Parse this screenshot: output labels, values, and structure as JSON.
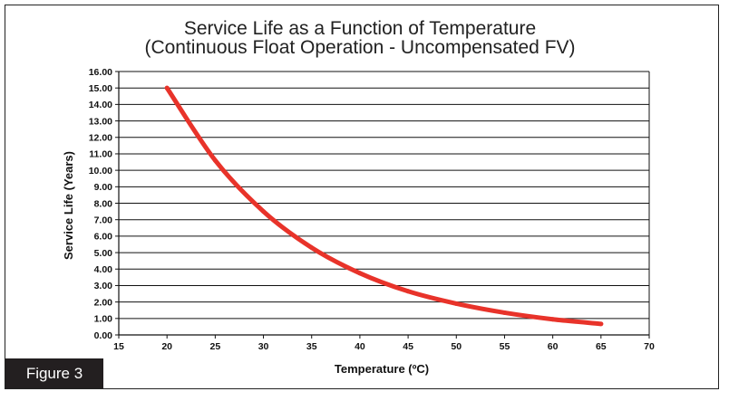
{
  "figure": {
    "label": "Figure 3"
  },
  "chart_data": {
    "type": "line",
    "title": "Service Life as a Function of Temperature",
    "subtitle": "(Continuous Float Operation - Uncompensated FV)",
    "xlabel": "Temperature (ºC)",
    "ylabel": "Service Life (Years)",
    "xlim": [
      15,
      70
    ],
    "ylim": [
      0,
      16
    ],
    "xticks": [
      15,
      20,
      25,
      30,
      35,
      40,
      45,
      50,
      55,
      60,
      65,
      70
    ],
    "yticks": [
      0,
      1,
      2,
      3,
      4,
      5,
      6,
      7,
      8,
      9,
      10,
      11,
      12,
      13,
      14,
      15,
      16
    ],
    "xtick_labels": [
      "15",
      "20",
      "25",
      "30",
      "35",
      "40",
      "45",
      "50",
      "55",
      "60",
      "65",
      "70"
    ],
    "ytick_labels": [
      "0.00",
      "1.00",
      "2.00",
      "3.00",
      "4.00",
      "5.00",
      "6.00",
      "7.00",
      "8.00",
      "9.00",
      "10.00",
      "11.00",
      "12.00",
      "13.00",
      "14.00",
      "15.00",
      "16.00"
    ],
    "grid": "horizontal",
    "series": [
      {
        "name": "Service Life",
        "color": "#e8332a",
        "x": [
          20,
          25,
          30,
          35,
          40,
          45,
          50,
          55,
          60,
          65
        ],
        "y": [
          15.0,
          10.6,
          7.5,
          5.3,
          3.75,
          2.65,
          1.9,
          1.35,
          0.95,
          0.67
        ]
      }
    ]
  }
}
